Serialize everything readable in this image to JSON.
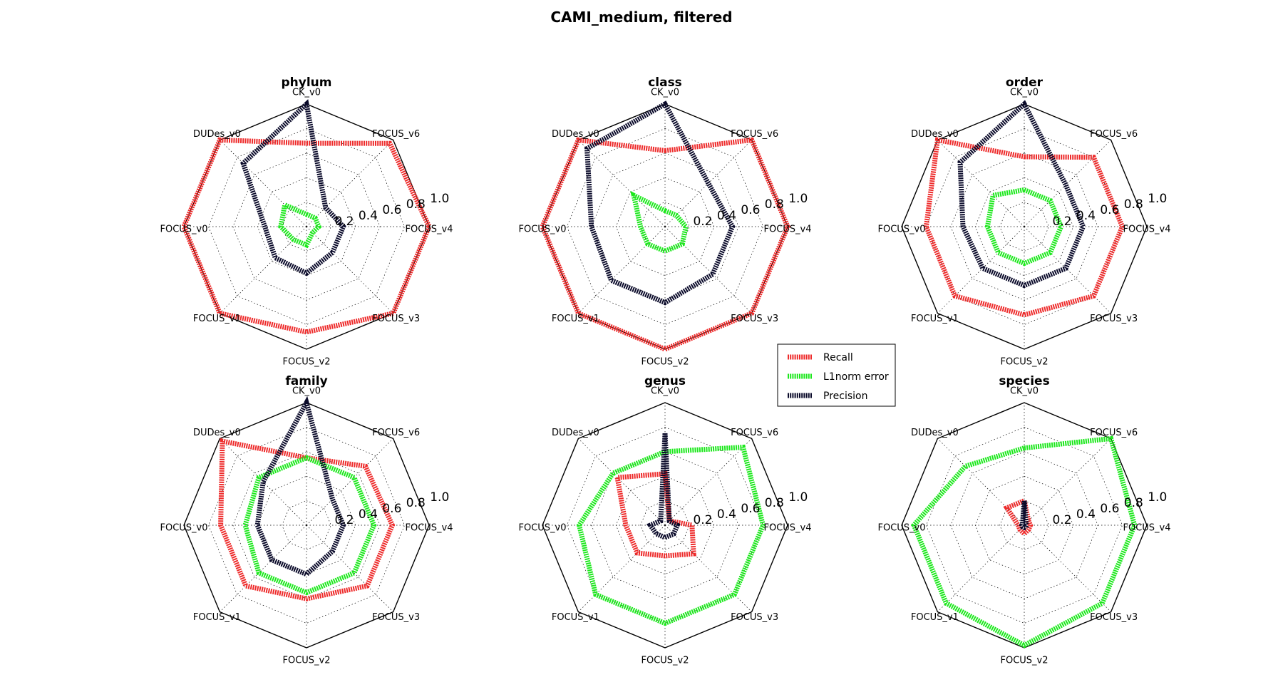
{
  "figure_title": "CAMI_medium, filtered",
  "legend": {
    "placement": "center",
    "entries": [
      {
        "label": "Recall",
        "color": "#ee2b2b"
      },
      {
        "label": "L1norm error",
        "color": "#1ce81c"
      },
      {
        "label": "Precision",
        "color": "#0a0a2a"
      }
    ]
  },
  "chart_data": [
    {
      "type": "radar",
      "title": "phylum",
      "axes": [
        "CK_v0",
        "FOCUS_v6",
        "FOCUS_v4",
        "FOCUS_v3",
        "FOCUS_v2",
        "FOCUS_v1",
        "FOCUS_v0",
        "DUDes_v0"
      ],
      "rlim": [
        0,
        1.0
      ],
      "rticks": [
        "0.2",
        "0.4",
        "0.6",
        "0.8",
        "1.0"
      ],
      "grid": true,
      "series": [
        {
          "name": "Recall",
          "values": [
            0.68,
            0.96,
            1.0,
            1.0,
            0.86,
            1.0,
            1.0,
            1.0
          ]
        },
        {
          "name": "L1norm error",
          "values": [
            0.1,
            0.1,
            0.1,
            0.07,
            0.15,
            0.15,
            0.21,
            0.25
          ]
        },
        {
          "name": "Precision",
          "values": [
            1.0,
            0.22,
            0.3,
            0.3,
            0.38,
            0.36,
            0.34,
            0.73
          ]
        }
      ]
    },
    {
      "type": "radar",
      "title": "class",
      "axes": [
        "CK_v0",
        "FOCUS_v6",
        "FOCUS_v4",
        "FOCUS_v3",
        "FOCUS_v2",
        "FOCUS_v1",
        "FOCUS_v0",
        "DUDes_v0"
      ],
      "rlim": [
        0,
        1.0
      ],
      "rticks": [
        "0.2",
        "0.4",
        "0.6",
        "0.8",
        "1.0"
      ],
      "grid": true,
      "series": [
        {
          "name": "Recall",
          "values": [
            0.62,
            1.0,
            1.0,
            1.0,
            1.0,
            1.0,
            1.0,
            1.0
          ]
        },
        {
          "name": "L1norm error",
          "values": [
            0.13,
            0.13,
            0.17,
            0.2,
            0.2,
            0.2,
            0.2,
            0.36
          ]
        },
        {
          "name": "Precision",
          "values": [
            1.0,
            0.5,
            0.55,
            0.55,
            0.62,
            0.62,
            0.6,
            0.9
          ]
        }
      ]
    },
    {
      "type": "radar",
      "title": "order",
      "axes": [
        "CK_v0",
        "FOCUS_v6",
        "FOCUS_v4",
        "FOCUS_v3",
        "FOCUS_v2",
        "FOCUS_v1",
        "FOCUS_v0",
        "DUDes_v0"
      ],
      "rlim": [
        0,
        1.0
      ],
      "rticks": [
        "0.2",
        "0.4",
        "0.6",
        "0.8",
        "1.0"
      ],
      "grid": true,
      "series": [
        {
          "name": "Recall",
          "values": [
            0.57,
            0.8,
            0.8,
            0.8,
            0.72,
            0.8,
            0.8,
            1.0
          ]
        },
        {
          "name": "L1norm error",
          "values": [
            0.3,
            0.3,
            0.3,
            0.3,
            0.3,
            0.3,
            0.3,
            0.36
          ]
        },
        {
          "name": "Precision",
          "values": [
            1.0,
            0.48,
            0.48,
            0.48,
            0.48,
            0.48,
            0.5,
            0.74
          ]
        }
      ]
    },
    {
      "type": "radar",
      "title": "family",
      "axes": [
        "CK_v0",
        "FOCUS_v6",
        "FOCUS_v4",
        "FOCUS_v3",
        "FOCUS_v2",
        "FOCUS_v1",
        "FOCUS_v0",
        "DUDes_v0"
      ],
      "rlim": [
        0,
        1.0
      ],
      "rticks": [
        "0.2",
        "0.4",
        "0.6",
        "0.8",
        "1.0"
      ],
      "grid": true,
      "series": [
        {
          "name": "Recall",
          "values": [
            0.55,
            0.68,
            0.7,
            0.7,
            0.6,
            0.7,
            0.7,
            0.97
          ]
        },
        {
          "name": "L1norm error",
          "values": [
            0.55,
            0.55,
            0.55,
            0.55,
            0.55,
            0.55,
            0.5,
            0.55
          ]
        },
        {
          "name": "Precision",
          "values": [
            1.0,
            0.3,
            0.3,
            0.3,
            0.4,
            0.4,
            0.4,
            0.5
          ]
        }
      ]
    },
    {
      "type": "radar",
      "title": "genus",
      "axes": [
        "CK_v0",
        "FOCUS_v6",
        "FOCUS_v4",
        "FOCUS_v3",
        "FOCUS_v2",
        "FOCUS_v1",
        "FOCUS_v0",
        "DUDes_v0"
      ],
      "rlim": [
        0,
        1.0
      ],
      "rticks": [
        "0.2",
        "0.4",
        "0.6",
        "0.8",
        "1.0"
      ],
      "grid": true,
      "series": [
        {
          "name": "Recall",
          "values": [
            0.42,
            0.05,
            0.22,
            0.33,
            0.25,
            0.32,
            0.32,
            0.55
          ]
        },
        {
          "name": "L1norm error",
          "values": [
            0.6,
            0.9,
            0.8,
            0.8,
            0.8,
            0.8,
            0.7,
            0.6
          ]
        },
        {
          "name": "Precision",
          "values": [
            0.75,
            0.05,
            0.1,
            0.1,
            0.1,
            0.1,
            0.12,
            0.05
          ]
        }
      ]
    },
    {
      "type": "radar",
      "title": "species",
      "axes": [
        "CK_v0",
        "FOCUS_v6",
        "FOCUS_v4",
        "FOCUS_v3",
        "FOCUS_v2",
        "FOCUS_v1",
        "FOCUS_v0",
        "DUDes_v0"
      ],
      "rlim": [
        0,
        1.0
      ],
      "rticks": [
        "0.2",
        "0.4",
        "0.6",
        "0.8",
        "1.0"
      ],
      "grid": true,
      "series": [
        {
          "name": "Recall",
          "values": [
            0.2,
            0.05,
            0.05,
            0.05,
            0.07,
            0.05,
            0.05,
            0.2
          ]
        },
        {
          "name": "L1norm error",
          "values": [
            0.63,
            1.0,
            0.9,
            0.9,
            0.98,
            0.9,
            0.9,
            0.68
          ]
        },
        {
          "name": "Precision",
          "values": [
            0.2,
            0.02,
            0.02,
            0.02,
            0.02,
            0.02,
            0.02,
            0.02
          ]
        }
      ]
    }
  ]
}
